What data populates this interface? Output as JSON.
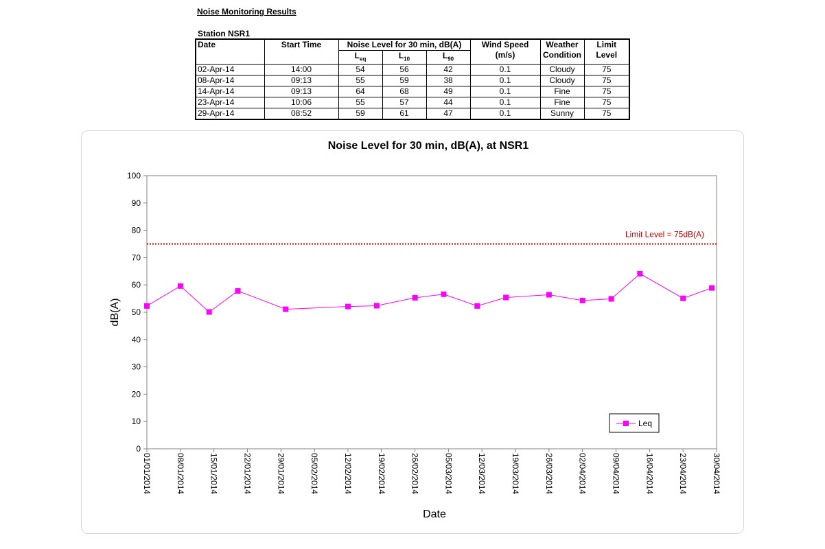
{
  "report": {
    "title": "Noise Monitoring Results",
    "station": "Station NSR1"
  },
  "table": {
    "headers": {
      "date": "Date",
      "start_time": "Start Time",
      "noise_level": "Noise Level for 30 min, dB(A)",
      "leq": "eq",
      "l10": "10",
      "l90": "90",
      "l_prefix": "L",
      "wind_speed": "Wind Speed",
      "wind_unit": "(m/s)",
      "weather": "Weather",
      "condition": "Condition",
      "limit": "Limit",
      "level": "Level"
    },
    "rows": [
      {
        "date": "02-Apr-14",
        "start": "14:00",
        "leq": "54",
        "l10": "56",
        "l90": "42",
        "wind": "0.1",
        "weather": "Cloudy",
        "limit": "75"
      },
      {
        "date": "08-Apr-14",
        "start": "09:13",
        "leq": "55",
        "l10": "59",
        "l90": "38",
        "wind": "0.1",
        "weather": "Cloudy",
        "limit": "75"
      },
      {
        "date": "14-Apr-14",
        "start": "09:13",
        "leq": "64",
        "l10": "68",
        "l90": "49",
        "wind": "0.1",
        "weather": "Fine",
        "limit": "75"
      },
      {
        "date": "23-Apr-14",
        "start": "10:06",
        "leq": "55",
        "l10": "57",
        "l90": "44",
        "wind": "0.1",
        "weather": "Fine",
        "limit": "75"
      },
      {
        "date": "29-Apr-14",
        "start": "08:52",
        "leq": "59",
        "l10": "61",
        "l90": "47",
        "wind": "0.1",
        "weather": "Sunny",
        "limit": "75"
      }
    ]
  },
  "chart_data": {
    "type": "line",
    "title": "Noise Level for 30 min, dB(A), at NSR1",
    "xlabel": "Date",
    "ylabel": "dB(A)",
    "ylim": [
      0,
      100
    ],
    "yticks": [
      0,
      10,
      20,
      30,
      40,
      50,
      60,
      70,
      80,
      90,
      100
    ],
    "xlim": [
      "2014-01-01",
      "2014-04-30"
    ],
    "xtick_labels": [
      "01/01/2014",
      "08/01/2014",
      "15/01/2014",
      "22/01/2014",
      "29/01/2014",
      "05/02/2014",
      "12/02/2014",
      "19/02/2014",
      "26/02/2014",
      "05/03/2014",
      "12/03/2014",
      "19/03/2014",
      "26/03/2014",
      "02/04/2014",
      "09/04/2014",
      "16/04/2014",
      "23/04/2014",
      "30/04/2014"
    ],
    "xtick_dates": [
      "2014-01-01",
      "2014-01-08",
      "2014-01-15",
      "2014-01-22",
      "2014-01-29",
      "2014-02-05",
      "2014-02-12",
      "2014-02-19",
      "2014-02-26",
      "2014-03-05",
      "2014-03-12",
      "2014-03-19",
      "2014-03-26",
      "2014-04-02",
      "2014-04-09",
      "2014-04-16",
      "2014-04-23",
      "2014-04-30"
    ],
    "series": [
      {
        "name": "Leq",
        "color": "#ff00ff",
        "marker": "square",
        "x": [
          "2014-01-01",
          "2014-01-08",
          "2014-01-14",
          "2014-01-20",
          "2014-01-30",
          "2014-02-12",
          "2014-02-18",
          "2014-02-26",
          "2014-03-04",
          "2014-03-11",
          "2014-03-17",
          "2014-03-26",
          "2014-04-02",
          "2014-04-08",
          "2014-04-14",
          "2014-04-23",
          "2014-04-29"
        ],
        "y": [
          52.3,
          59.6,
          50.1,
          57.8,
          51.1,
          52.1,
          52.4,
          55.3,
          56.6,
          52.3,
          55.4,
          56.4,
          54.3,
          54.9,
          64.1,
          55.1,
          58.9
        ]
      }
    ],
    "limit_line": {
      "value": 75,
      "label": "Limit Level  = 75dB(A)",
      "color": "#c00000",
      "style": "dotted"
    },
    "legend": {
      "placement": "bottom-right",
      "entries": [
        "Leq"
      ]
    },
    "grid": false
  }
}
